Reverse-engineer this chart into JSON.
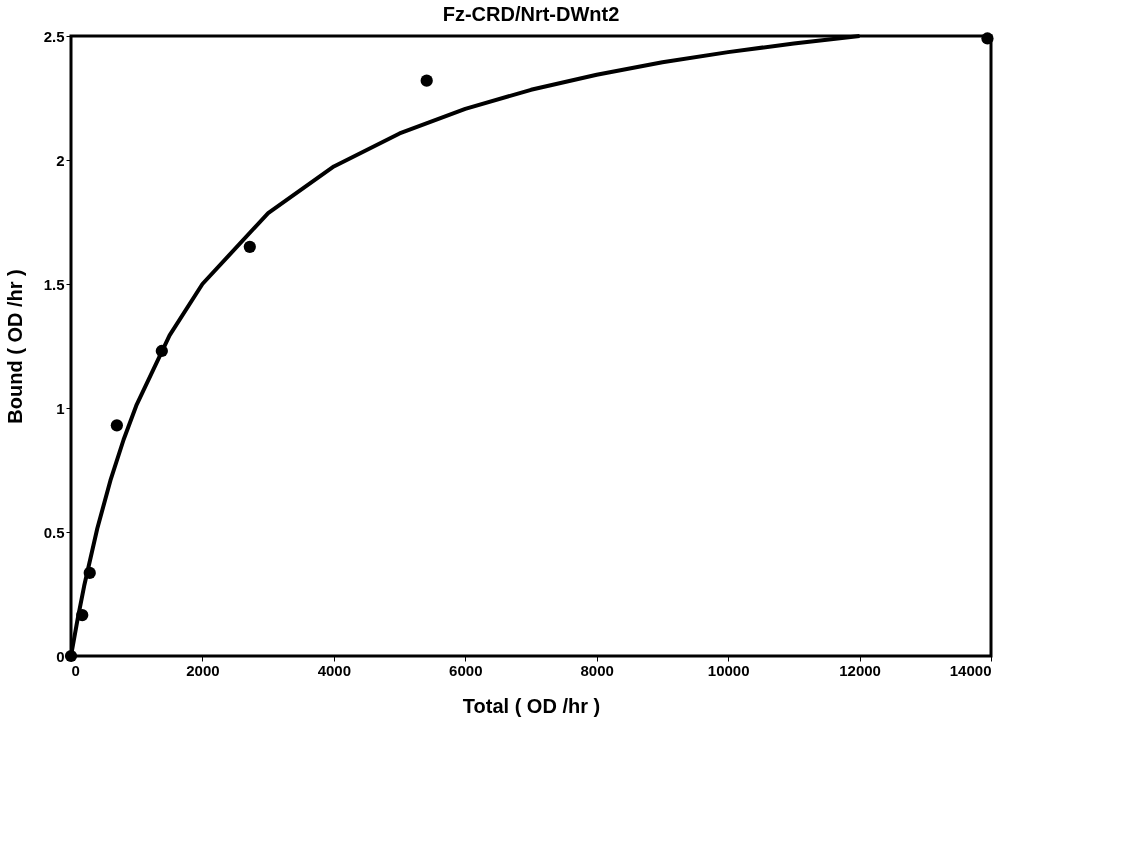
{
  "chart_data": {
    "type": "scatter",
    "title": "Fz-CRD/Nrt-DWnt2",
    "xlabel": "Total ( OD /hr )",
    "ylabel": "Bound ( OD /hr )",
    "xlim": [
      0,
      14000
    ],
    "xticks": [
      0,
      2000,
      4000,
      6000,
      8000,
      10000,
      12000,
      14000
    ],
    "ylim": [
      0,
      2.5
    ],
    "yticks": [
      0,
      0.5,
      1,
      1.5,
      2,
      2.5
    ],
    "grid": false,
    "series": [
      {
        "marker": "circle",
        "color": "#000000",
        "x": [
          0,
          171,
          285,
          698,
          1382,
          2721,
          5413,
          13946
        ],
        "values": [
          0,
          0.165,
          0.335,
          0.93,
          1.23,
          1.65,
          2.32,
          2.49
        ]
      },
      {
        "type": "line",
        "marker": "none",
        "color": "#000000",
        "line_style": "solid",
        "x": [
          0,
          100,
          200,
          400,
          600,
          800,
          1000,
          1500,
          2000,
          3000,
          4000,
          5000,
          6000,
          7000,
          8000,
          9000,
          10000,
          11000,
          12000
        ],
        "values": [
          0,
          0.148,
          0.282,
          0.514,
          0.708,
          0.872,
          1.014,
          1.293,
          1.5,
          1.786,
          1.974,
          2.107,
          2.206,
          2.283,
          2.344,
          2.394,
          2.435,
          2.47,
          2.5
        ]
      }
    ]
  }
}
